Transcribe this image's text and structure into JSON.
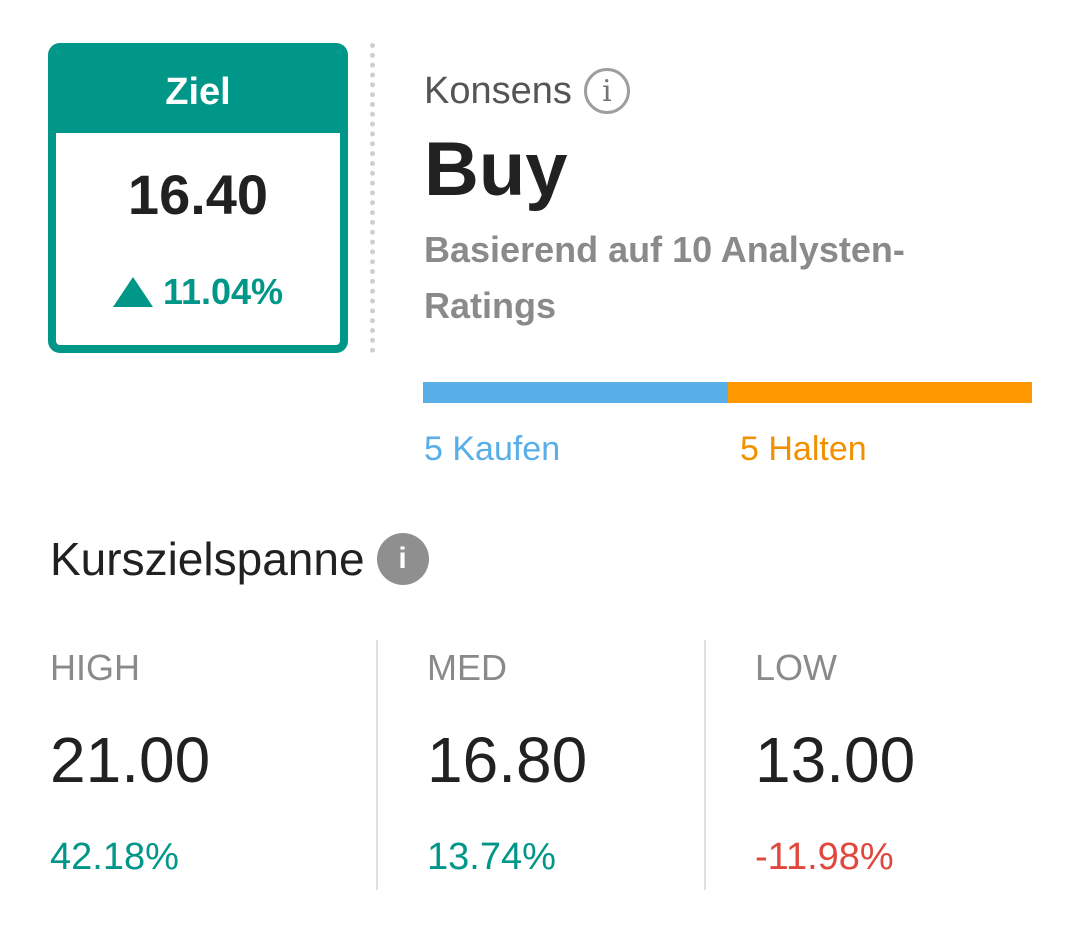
{
  "target": {
    "header": "Ziel",
    "value": "16.40",
    "change": "11.04%",
    "direction_icon": "up-triangle-icon",
    "color": "#009688"
  },
  "consensus": {
    "label": "Konsens",
    "info_icon": "info-outline-icon",
    "rating": "Buy",
    "description": "Basierend auf 10 Analysten-Ratings",
    "breakdown": [
      {
        "label": "5 Kaufen",
        "count": 5,
        "color": "#58aee6"
      },
      {
        "label": "5 Halten",
        "count": 5,
        "color": "#ff9800"
      }
    ]
  },
  "price_range": {
    "title": "Kurszielspanne",
    "info_icon": "info-filled-icon",
    "columns": [
      {
        "label": "HIGH",
        "value": "21.00",
        "pct": "42.18%",
        "pct_color": "#009688"
      },
      {
        "label": "MED",
        "value": "16.80",
        "pct": "13.74%",
        "pct_color": "#009688"
      },
      {
        "label": "LOW",
        "value": "13.00",
        "pct": "-11.98%",
        "pct_color": "#e0483e"
      }
    ]
  }
}
